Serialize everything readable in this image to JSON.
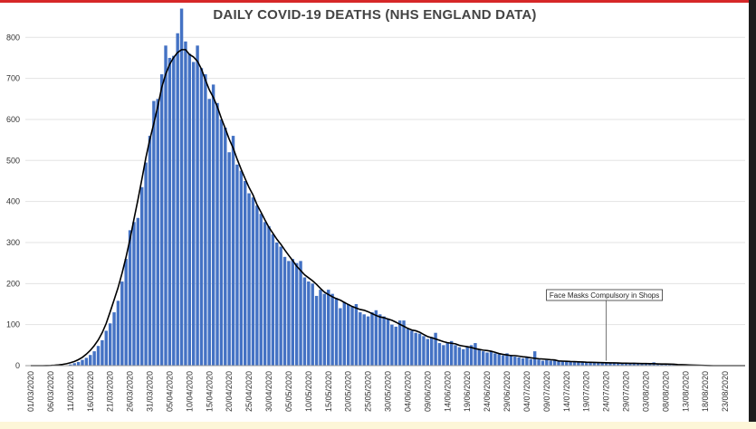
{
  "chart_data": {
    "type": "bar",
    "title": "DAILY COVID-19 DEATHS (NHS ENGLAND DATA)",
    "xlabel": "",
    "ylabel": "",
    "ylim": [
      0,
      880
    ],
    "yticks": [
      "0",
      "100",
      "200",
      "300",
      "400",
      "500",
      "600",
      "700",
      "800"
    ],
    "xticks": [
      "01/03/2020",
      "06/03/2020",
      "11/03/2020",
      "16/03/2020",
      "21/03/2020",
      "26/03/2020",
      "31/03/2020",
      "05/04/2020",
      "10/04/2020",
      "15/04/2020",
      "20/04/2020",
      "25/04/2020",
      "30/04/2020",
      "05/05/2020",
      "10/05/2020",
      "15/05/2020",
      "20/05/2020",
      "25/05/2020",
      "30/05/2020",
      "04/06/2020",
      "09/06/2020",
      "14/06/2020",
      "19/06/2020",
      "24/06/2020",
      "29/06/2020",
      "04/07/2020",
      "09/07/2020",
      "14/07/2020",
      "19/07/2020",
      "24/07/2020",
      "29/07/2020",
      "03/08/2020",
      "08/08/2020",
      "13/08/2020",
      "18/08/2020",
      "23/08/2020"
    ],
    "start_date": "2020-03-01",
    "values": [
      0,
      0,
      0,
      0,
      0,
      0,
      0,
      0,
      0,
      1,
      3,
      6,
      9,
      14,
      19,
      26,
      35,
      48,
      62,
      85,
      103,
      130,
      158,
      205,
      260,
      330,
      350,
      360,
      435,
      495,
      560,
      645,
      650,
      710,
      780,
      750,
      755,
      810,
      870,
      790,
      760,
      740,
      780,
      725,
      710,
      650,
      685,
      640,
      600,
      580,
      520,
      560,
      490,
      475,
      450,
      420,
      410,
      390,
      370,
      350,
      340,
      320,
      300,
      290,
      265,
      255,
      260,
      250,
      255,
      215,
      205,
      200,
      170,
      185,
      175,
      185,
      175,
      165,
      140,
      155,
      150,
      145,
      150,
      130,
      125,
      120,
      130,
      135,
      125,
      120,
      115,
      100,
      95,
      110,
      110,
      90,
      85,
      80,
      78,
      72,
      65,
      70,
      80,
      55,
      50,
      55,
      60,
      50,
      45,
      40,
      45,
      50,
      55,
      40,
      35,
      32,
      35,
      30,
      28,
      25,
      30,
      26,
      22,
      20,
      18,
      20,
      16,
      35,
      15,
      12,
      14,
      12,
      13,
      10,
      12,
      11,
      10,
      9,
      8,
      10,
      8,
      7,
      9,
      8,
      7,
      6,
      8,
      7,
      6,
      5,
      6,
      5,
      7,
      5,
      4,
      5,
      4,
      8,
      4,
      3,
      5,
      3,
      4,
      3,
      2,
      3,
      2
    ],
    "trend_line": true,
    "annotation": "Face Masks Compulsory in Shops",
    "annotation_date": "2020-07-24",
    "bar_color": "#4472c4",
    "trend_color": "#000000",
    "grid": true,
    "legend": "none"
  }
}
